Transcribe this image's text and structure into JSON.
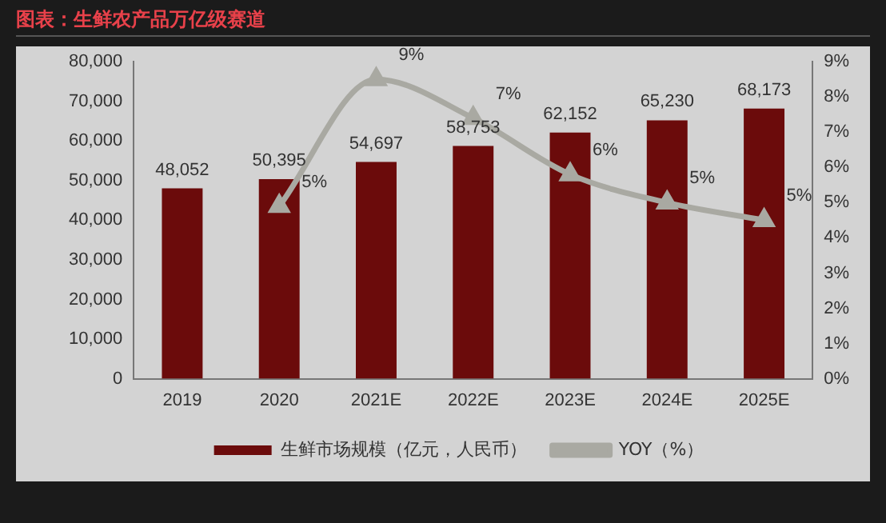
{
  "chart_data": {
    "type": "bar",
    "title": "图表：生鲜农产品万亿级赛道",
    "categories": [
      "2019",
      "2020",
      "2021E",
      "2022E",
      "2023E",
      "2024E",
      "2025E"
    ],
    "series": [
      {
        "name": "生鲜市场规模（亿元，人民币）",
        "color": "#6b0b0b",
        "values": [
          48052,
          50395,
          54697,
          58753,
          62152,
          65230,
          68173
        ],
        "value_labels": [
          "48,052",
          "50,395",
          "54,697",
          "58,753",
          "62,152",
          "65,230",
          "68,173"
        ]
      },
      {
        "name": "YOY（%）",
        "type": "line",
        "axis": "y2",
        "color": "#a9a9a2",
        "marker": "triangle",
        "values": [
          null,
          4.9,
          8.5,
          7.4,
          5.8,
          5.0,
          4.5
        ],
        "value_labels": [
          null,
          "5%",
          "9%",
          "7%",
          "6%",
          "5%",
          "5%"
        ]
      }
    ],
    "ylim": [
      0,
      80000
    ],
    "yticks": [
      {
        "value": 0,
        "label": "0"
      },
      {
        "value": 10000,
        "label": "10,000"
      },
      {
        "value": 20000,
        "label": "20,000"
      },
      {
        "value": 30000,
        "label": "30,000"
      },
      {
        "value": 40000,
        "label": "40,000"
      },
      {
        "value": 50000,
        "label": "50,000"
      },
      {
        "value": 60000,
        "label": "60,000"
      },
      {
        "value": 70000,
        "label": "70,000"
      },
      {
        "value": 80000,
        "label": "80,000"
      }
    ],
    "y2lim": [
      0,
      9
    ],
    "y2ticks": [
      {
        "value": 0,
        "label": "0%"
      },
      {
        "value": 1,
        "label": "1%"
      },
      {
        "value": 2,
        "label": "2%"
      },
      {
        "value": 3,
        "label": "3%"
      },
      {
        "value": 4,
        "label": "4%"
      },
      {
        "value": 5,
        "label": "5%"
      },
      {
        "value": 6,
        "label": "6%"
      },
      {
        "value": 7,
        "label": "7%"
      },
      {
        "value": 8,
        "label": "8%"
      },
      {
        "value": 9,
        "label": "9%"
      }
    ],
    "grid": false,
    "legend": "bottom"
  }
}
